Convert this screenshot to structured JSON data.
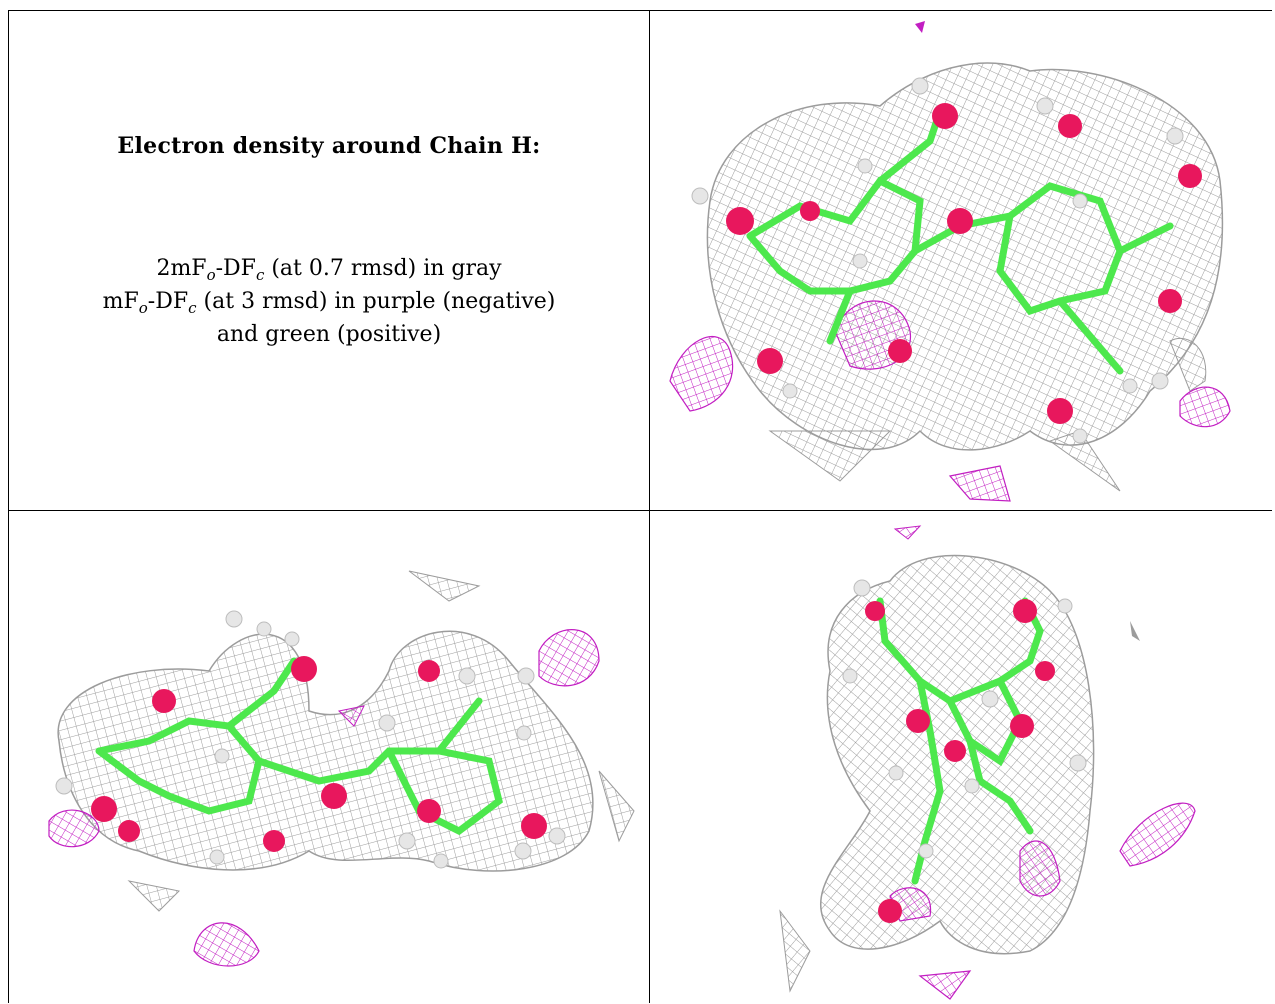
{
  "caption": {
    "title": "Electron density around Chain H:",
    "line1": {
      "prefix": "2mF",
      "sub1": "o",
      "mid": "-DF",
      "sub2": "c",
      "suffix": " (at 0.7 rmsd) in gray"
    },
    "line2": {
      "prefix": "mF",
      "sub1": "o",
      "mid": "-DF",
      "sub2": "c",
      "suffix": " (at 3 rmsd) in purple (negative)"
    },
    "line3": "and green (positive)"
  },
  "colors": {
    "mesh_gray": "#9c9c9c",
    "mesh_purple": "#c21ec2",
    "carbon_green": "#4de84d",
    "oxygen_red": "#e8175d",
    "hydrogen_white": "#e6e6e6",
    "border": "#000000"
  },
  "panels": [
    {
      "id": "view-top-right",
      "view": "molecular-view-1"
    },
    {
      "id": "view-bottom-left",
      "view": "molecular-view-2"
    },
    {
      "id": "view-bottom-right",
      "view": "molecular-view-3"
    }
  ]
}
